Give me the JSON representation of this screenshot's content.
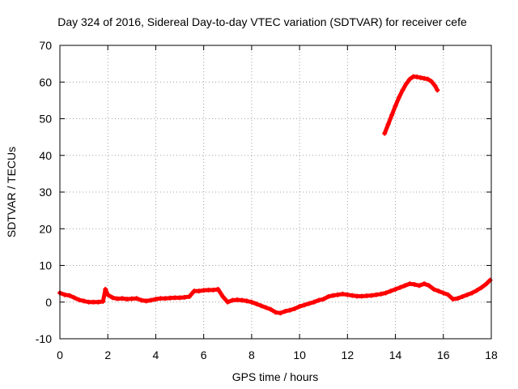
{
  "chart_data": {
    "type": "scatter",
    "title": "Day 324 of 2016, Sidereal Day-to-day VTEC variation (SDTVAR) for receiver cefe",
    "xlabel": "GPS time / hours",
    "ylabel": "SDTVAR / TECUs",
    "xlim": [
      0,
      18
    ],
    "ylim": [
      -10,
      70
    ],
    "xticks": [
      0,
      2,
      4,
      6,
      8,
      10,
      12,
      14,
      16,
      18
    ],
    "yticks": [
      -10,
      0,
      10,
      20,
      30,
      40,
      50,
      60,
      70
    ],
    "xtick_labels": [
      "0",
      "2",
      "4",
      "6",
      "8",
      "10",
      "12",
      "14",
      "16",
      "18"
    ],
    "ytick_labels": [
      "-10",
      "0",
      "10",
      "20",
      "30",
      "40",
      "50",
      "60",
      "70"
    ],
    "grid": true,
    "marker": "plus",
    "series_color": "#ff0000",
    "series": [
      {
        "name": "main",
        "x": [
          0.0,
          0.2,
          0.4,
          0.6,
          0.8,
          1.0,
          1.2,
          1.4,
          1.6,
          1.8,
          1.9,
          2.0,
          2.2,
          2.4,
          2.6,
          2.8,
          3.0,
          3.2,
          3.4,
          3.6,
          3.8,
          4.0,
          4.2,
          4.4,
          4.6,
          4.8,
          5.0,
          5.2,
          5.4,
          5.6,
          5.8,
          6.0,
          6.2,
          6.4,
          6.6,
          6.8,
          7.0,
          7.2,
          7.4,
          7.6,
          7.8,
          8.0,
          8.2,
          8.4,
          8.6,
          8.8,
          9.0,
          9.2,
          9.4,
          9.6,
          9.8,
          10.0,
          10.2,
          10.4,
          10.6,
          10.8,
          11.0,
          11.2,
          11.4,
          11.6,
          11.8,
          12.0,
          12.2,
          12.4,
          12.6,
          12.8,
          13.0,
          13.2,
          13.4,
          13.6,
          13.8,
          14.0,
          14.2,
          14.4,
          14.6,
          14.8,
          15.0,
          15.2,
          15.4,
          15.6,
          15.8,
          16.0,
          16.2,
          16.4,
          16.6,
          16.8,
          17.0,
          17.2,
          17.4,
          17.6,
          17.8,
          17.95
        ],
        "y": [
          2.5,
          2.0,
          1.8,
          1.2,
          0.6,
          0.3,
          0.0,
          0.0,
          0.0,
          0.2,
          3.5,
          2.0,
          1.2,
          0.9,
          1.0,
          0.8,
          0.9,
          1.0,
          0.5,
          0.3,
          0.5,
          0.8,
          1.0,
          1.0,
          1.1,
          1.2,
          1.2,
          1.3,
          1.5,
          3.0,
          3.0,
          3.2,
          3.3,
          3.3,
          3.5,
          1.5,
          0.0,
          0.5,
          0.6,
          0.5,
          0.3,
          0.0,
          -0.5,
          -1.0,
          -1.5,
          -2.0,
          -2.8,
          -3.0,
          -2.5,
          -2.2,
          -1.8,
          -1.2,
          -0.8,
          -0.4,
          0.0,
          0.5,
          0.8,
          1.5,
          1.8,
          2.0,
          2.2,
          2.0,
          1.8,
          1.6,
          1.6,
          1.7,
          1.8,
          2.0,
          2.2,
          2.5,
          3.0,
          3.5,
          4.0,
          4.5,
          5.0,
          4.8,
          4.5,
          5.0,
          4.5,
          3.5,
          3.0,
          2.5,
          2.0,
          0.8,
          1.0,
          1.5,
          2.0,
          2.5,
          3.2,
          4.0,
          5.0,
          6.0
        ]
      },
      {
        "name": "afternoon",
        "x": [
          13.55,
          13.7,
          13.85,
          14.0,
          14.15,
          14.3,
          14.45,
          14.6,
          14.75,
          14.9,
          15.05,
          15.2,
          15.35,
          15.5,
          15.65,
          15.75
        ],
        "y": [
          46.0,
          48.5,
          51.0,
          53.5,
          55.8,
          57.8,
          59.5,
          60.8,
          61.5,
          61.4,
          61.2,
          61.0,
          60.8,
          60.2,
          59.0,
          57.8
        ]
      }
    ]
  }
}
